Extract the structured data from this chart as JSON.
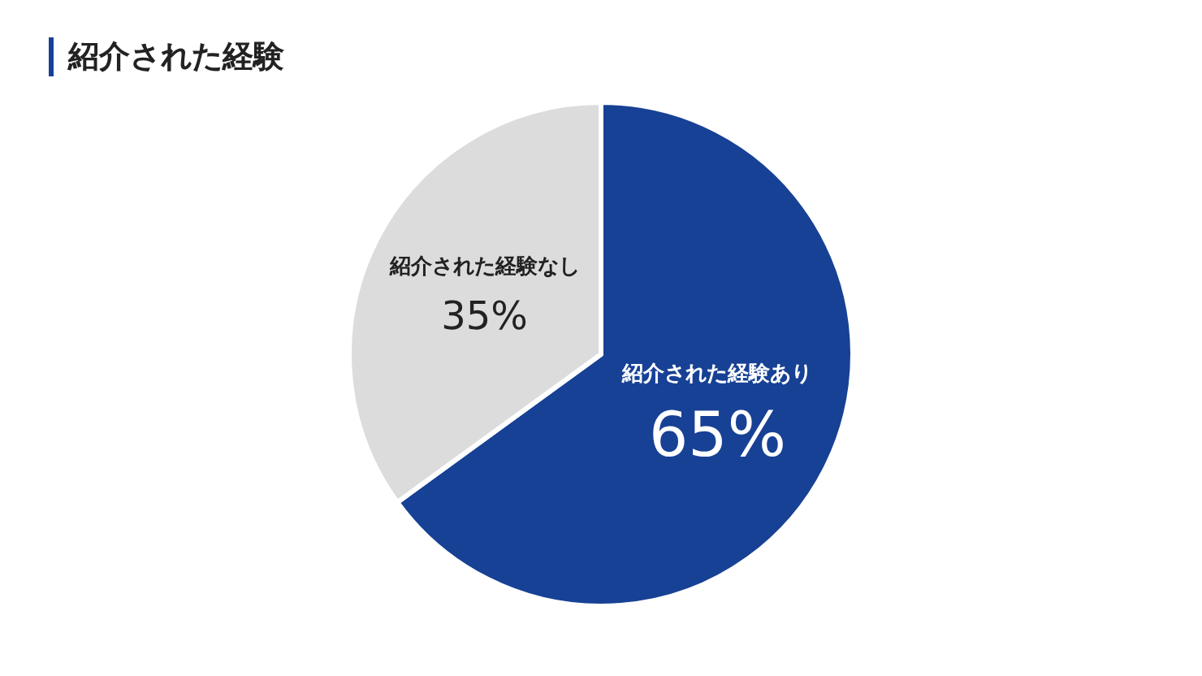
{
  "chart_data": {
    "type": "pie",
    "title": "紹介された経験",
    "categories": [
      "紹介された経験あり",
      "紹介された経験なし"
    ],
    "values": [
      65,
      35
    ],
    "colors": [
      "#174195",
      "#dcdcdc"
    ],
    "value_labels": [
      "65%",
      "35%"
    ],
    "legend": false
  }
}
